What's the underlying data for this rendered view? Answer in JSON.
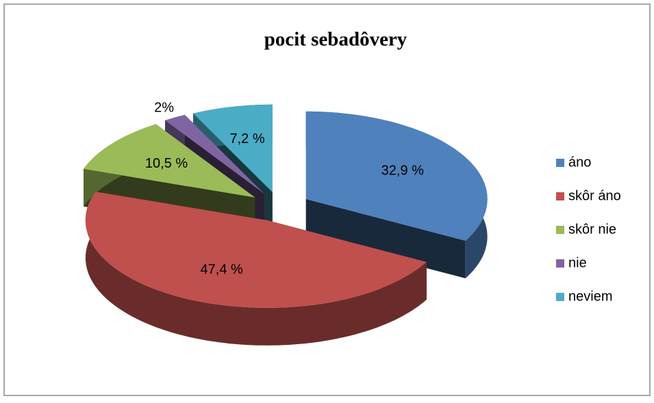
{
  "chart_data": {
    "type": "pie3d",
    "title": "pocit sebadôvery",
    "categories": [
      "áno",
      "skôr áno",
      "skôr nie",
      "nie",
      "neviem"
    ],
    "values": [
      32.9,
      47.4,
      10.5,
      2,
      7.2
    ],
    "value_labels": [
      "32,9 %",
      "47,4 %",
      "10,5 %",
      "2%",
      "7,2 %"
    ],
    "colors": [
      "#4f81bd",
      "#c0504d",
      "#9bbb59",
      "#8064a2",
      "#4bacc6"
    ],
    "legend": "right"
  }
}
